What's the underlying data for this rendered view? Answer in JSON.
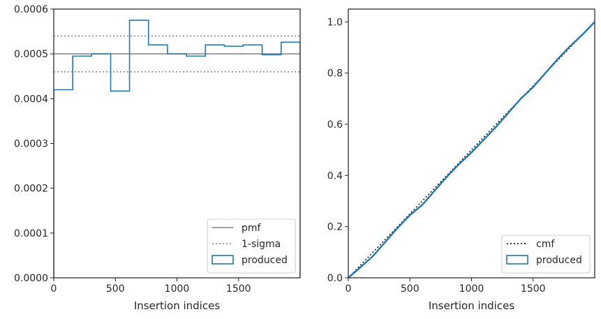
{
  "chart_data": [
    {
      "type": "line",
      "xlabel": "Insertion indices",
      "ylabel": "",
      "xlim": [
        0,
        2000
      ],
      "ylim": [
        0,
        0.0006
      ],
      "xticks": [
        0,
        500,
        1000,
        1500
      ],
      "xtick_labels": [
        "0",
        "500",
        "1000",
        "1500"
      ],
      "yticks": [
        0,
        0.0001,
        0.0002,
        0.0003,
        0.0004,
        0.0005,
        0.0006
      ],
      "ytick_labels": [
        "0.0000",
        "0.0001",
        "0.0002",
        "0.0003",
        "0.0004",
        "0.0005",
        "0.0006"
      ],
      "grid": false,
      "legend_position": "lower-right",
      "series": [
        {
          "name": "pmf",
          "kind": "hline",
          "y": 0.0005,
          "color": "#808080",
          "style": "solid"
        },
        {
          "name": "1-sigma",
          "kind": "hlines",
          "y": [
            0.00054,
            0.00046
          ],
          "color": "#808080",
          "style": "dotted"
        },
        {
          "name": "produced",
          "kind": "step-histogram",
          "color": "#1f77b4",
          "bin_edges": [
            0,
            154,
            308,
            462,
            615,
            769,
            923,
            1077,
            1231,
            1385,
            1538,
            1692,
            1846,
            2000
          ],
          "values": [
            0.00042,
            0.000495,
            0.0005,
            0.000417,
            0.000575,
            0.00052,
            0.0005,
            0.000495,
            0.00052,
            0.000517,
            0.00052,
            0.000498,
            0.000526
          ]
        }
      ]
    },
    {
      "type": "line",
      "xlabel": "Insertion indices",
      "ylabel": "",
      "xlim": [
        0,
        2000
      ],
      "ylim": [
        0,
        1.05
      ],
      "xticks": [
        0,
        500,
        1000,
        1500
      ],
      "xtick_labels": [
        "0",
        "500",
        "1000",
        "1500"
      ],
      "yticks": [
        0,
        0.2,
        0.4,
        0.6,
        0.8,
        1.0
      ],
      "ytick_labels": [
        "0.0",
        "0.2",
        "0.4",
        "0.6",
        "0.8",
        "1.0"
      ],
      "grid": false,
      "legend_position": "lower-right",
      "series": [
        {
          "name": "cmf",
          "kind": "line",
          "color": "#000000",
          "style": "dotted",
          "x": [
            0,
            2000
          ],
          "y": [
            0,
            1.0
          ]
        },
        {
          "name": "produced",
          "kind": "line",
          "color": "#1f77b4",
          "style": "solid",
          "x": [
            0,
            100,
            200,
            300,
            400,
            500,
            600,
            700,
            800,
            900,
            1000,
            1100,
            1200,
            1300,
            1400,
            1500,
            1600,
            1700,
            1800,
            1900,
            2000
          ],
          "y": [
            0,
            0.042,
            0.085,
            0.14,
            0.195,
            0.245,
            0.285,
            0.34,
            0.395,
            0.445,
            0.49,
            0.54,
            0.59,
            0.645,
            0.7,
            0.745,
            0.8,
            0.855,
            0.905,
            0.95,
            1.0
          ]
        }
      ]
    }
  ]
}
